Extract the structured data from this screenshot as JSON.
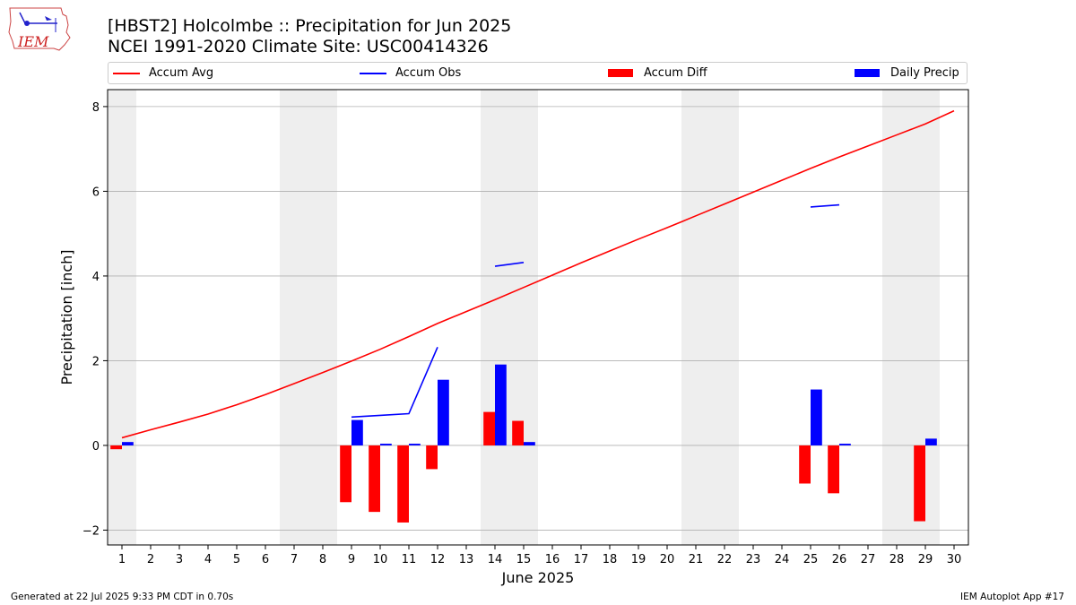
{
  "header": {
    "title_line1": "[HBST2] Holcolmbe :: Precipitation for Jun 2025",
    "title_line2": "NCEI 1991-2020 Climate Site: USC00414326",
    "logo_text": "IEM"
  },
  "footer": {
    "generated": "Generated at 22 Jul 2025 9:33 PM CDT in 0.70s",
    "app": "IEM Autoplot App #17"
  },
  "colors": {
    "avg": "#ff0000",
    "obs": "#0000ff",
    "diff": "#ff0000",
    "daily": "#0000ff",
    "weekend": "#eeeeee",
    "grid": "#b0b0b0"
  },
  "chart_data": {
    "type": "bar+line",
    "title": "[HBST2] Holcolmbe :: Precipitation for Jun 2025",
    "xlabel": "June 2025",
    "ylabel": "Precipitation [inch]",
    "ylim": [
      -2.35,
      8.4
    ],
    "yticks": [
      -2,
      0,
      2,
      4,
      6,
      8
    ],
    "xlim": [
      0.5,
      30.5
    ],
    "days": [
      1,
      2,
      3,
      4,
      5,
      6,
      7,
      8,
      9,
      10,
      11,
      12,
      13,
      14,
      15,
      16,
      17,
      18,
      19,
      20,
      21,
      22,
      23,
      24,
      25,
      26,
      27,
      28,
      29,
      30
    ],
    "weekend_spans": [
      [
        0.5,
        1.5
      ],
      [
        6.5,
        8.5
      ],
      [
        13.5,
        15.5
      ],
      [
        20.5,
        22.5
      ],
      [
        27.5,
        29.5
      ]
    ],
    "grid": true,
    "legend": [
      {
        "label": "Accum Avg",
        "kind": "line",
        "color": "#ff0000"
      },
      {
        "label": "Accum Obs",
        "kind": "line",
        "color": "#0000ff"
      },
      {
        "label": "Accum Diff",
        "kind": "bar",
        "color": "#ff0000"
      },
      {
        "label": "Daily Precip",
        "kind": "bar",
        "color": "#0000ff"
      }
    ],
    "series": [
      {
        "name": "Accum Avg",
        "type": "line",
        "values": [
          0.18,
          0.37,
          0.55,
          0.74,
          0.96,
          1.2,
          1.46,
          1.72,
          1.99,
          2.27,
          2.57,
          2.88,
          3.16,
          3.44,
          3.73,
          4.02,
          4.31,
          4.59,
          4.87,
          5.14,
          5.42,
          5.7,
          5.98,
          6.26,
          6.54,
          6.81,
          7.07,
          7.33,
          7.59,
          7.9
        ]
      },
      {
        "name": "Accum Obs",
        "type": "line",
        "values": [
          null,
          null,
          null,
          null,
          null,
          null,
          null,
          null,
          0.67,
          0.71,
          0.75,
          2.32,
          null,
          4.23,
          4.32,
          null,
          null,
          null,
          null,
          null,
          null,
          null,
          null,
          null,
          5.63,
          5.68,
          null,
          null,
          null,
          null
        ]
      },
      {
        "name": "Accum Diff",
        "type": "bar",
        "values": [
          -0.09,
          null,
          null,
          null,
          null,
          null,
          null,
          null,
          -1.34,
          -1.57,
          -1.82,
          -0.56,
          null,
          0.79,
          0.58,
          null,
          null,
          null,
          null,
          null,
          null,
          null,
          null,
          null,
          -0.9,
          -1.13,
          null,
          null,
          -1.79,
          null
        ]
      },
      {
        "name": "Daily Precip",
        "type": "bar",
        "values": [
          0.08,
          null,
          null,
          null,
          null,
          null,
          null,
          null,
          0.6,
          0.04,
          0.04,
          1.55,
          null,
          1.91,
          0.08,
          null,
          null,
          null,
          null,
          null,
          null,
          null,
          null,
          null,
          1.32,
          0.04,
          null,
          null,
          0.16,
          null
        ]
      }
    ]
  }
}
